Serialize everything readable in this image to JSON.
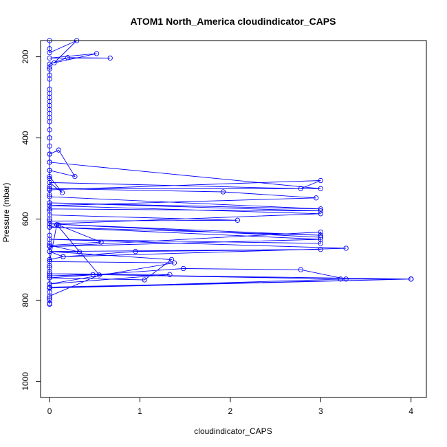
{
  "chart_data": {
    "type": "line",
    "title": "ATOM1 North_America cloudindicator_CAPS",
    "xlabel": "cloudindicator_CAPS",
    "ylabel": "Pressure (mbar)",
    "xlim": [
      -0.1,
      4.17
    ],
    "ylim": [
      1040,
      160
    ],
    "y_inverted": true,
    "xticks": [
      0,
      1,
      2,
      3,
      4
    ],
    "yticks": [
      200,
      400,
      600,
      800,
      1000
    ],
    "grid": false,
    "legend": "none",
    "marker": "open-circle",
    "series": [
      {
        "color": "#0000ff",
        "points": [
          [
            0,
            808
          ],
          [
            0,
            795
          ],
          [
            0,
            780
          ],
          [
            0,
            770
          ],
          [
            0,
            760
          ],
          [
            0,
            745
          ],
          [
            0,
            730
          ],
          [
            0,
            715
          ],
          [
            0,
            700
          ],
          [
            0.15,
            693
          ],
          [
            0,
            680
          ],
          [
            0.33,
            681
          ],
          [
            0,
            665
          ],
          [
            0.57,
            657
          ],
          [
            0.1,
            615
          ],
          [
            0,
            620
          ],
          [
            0,
            605
          ],
          [
            2.08,
            603
          ],
          [
            0,
            590
          ],
          [
            0,
            575
          ],
          [
            3,
            580
          ],
          [
            0,
            560
          ],
          [
            3,
            575
          ],
          [
            0,
            545
          ],
          [
            0,
            528
          ],
          [
            3,
            505
          ],
          [
            2.78,
            525
          ],
          [
            0,
            510
          ],
          [
            0.14,
            535
          ],
          [
            0,
            495
          ],
          [
            0,
            480
          ],
          [
            0.28,
            495
          ],
          [
            0.1,
            430
          ],
          [
            0,
            440
          ],
          [
            0,
            460
          ],
          [
            3,
            525
          ],
          [
            0,
            525
          ],
          [
            1.92,
            533
          ],
          [
            2.95,
            548
          ],
          [
            0,
            567
          ],
          [
            3,
            587
          ],
          [
            0,
            612
          ],
          [
            3,
            640
          ],
          [
            0,
            620
          ],
          [
            3,
            650
          ],
          [
            0,
            668
          ],
          [
            3,
            632
          ],
          [
            3,
            640
          ],
          [
            0,
            612
          ],
          [
            3,
            645
          ],
          [
            3,
            660
          ],
          [
            0,
            650
          ],
          [
            3.28,
            672
          ],
          [
            0.15,
            693
          ],
          [
            0.95,
            680
          ],
          [
            3,
            675
          ],
          [
            0,
            680
          ],
          [
            1.35,
            700
          ],
          [
            1.05,
            750
          ],
          [
            0,
            745
          ],
          [
            1.48,
            722
          ],
          [
            2.78,
            725
          ],
          [
            3.28,
            748
          ],
          [
            0,
            770
          ],
          [
            4,
            748
          ],
          [
            4,
            748
          ],
          [
            0,
            768
          ],
          [
            0,
            740
          ],
          [
            0.48,
            737
          ],
          [
            4,
            748
          ],
          [
            3.22,
            748
          ],
          [
            0,
            735
          ],
          [
            1.33,
            737
          ],
          [
            0,
            760
          ],
          [
            1.38,
            708
          ],
          [
            0,
            705
          ],
          [
            0.08,
            614
          ],
          [
            0.55,
            738
          ],
          [
            0,
            790
          ],
          [
            0,
            800
          ],
          [
            0,
            810
          ]
        ]
      },
      {
        "color": "#0000ff",
        "points": [
          [
            0,
            400
          ],
          [
            0,
            380
          ],
          [
            0,
            360
          ],
          [
            0,
            350
          ],
          [
            0,
            340
          ],
          [
            0,
            330
          ],
          [
            0,
            320
          ],
          [
            0,
            310
          ],
          [
            0,
            300
          ],
          [
            0,
            290
          ],
          [
            0,
            280
          ],
          [
            0,
            255
          ],
          [
            0,
            245
          ],
          [
            0,
            230
          ],
          [
            0,
            225
          ],
          [
            0,
            218
          ],
          [
            0.2,
            202
          ],
          [
            0.67,
            203
          ],
          [
            0,
            203
          ],
          [
            0.52,
            192
          ],
          [
            0.05,
            215
          ],
          [
            0.3,
            160
          ],
          [
            0,
            190
          ],
          [
            0,
            180
          ],
          [
            0,
            160
          ]
        ]
      },
      {
        "color": "#0000ff",
        "points": [
          [
            0,
            400
          ],
          [
            0,
            420
          ],
          [
            0,
            440
          ],
          [
            0,
            460
          ],
          [
            0,
            480
          ],
          [
            0,
            500
          ],
          [
            0,
            520
          ],
          [
            0,
            540
          ],
          [
            0,
            560
          ],
          [
            0,
            580
          ],
          [
            0,
            600
          ],
          [
            0,
            620
          ],
          [
            0,
            640
          ],
          [
            0,
            660
          ],
          [
            0,
            680
          ],
          [
            0,
            700
          ],
          [
            0,
            720
          ],
          [
            0,
            740
          ]
        ]
      }
    ]
  }
}
